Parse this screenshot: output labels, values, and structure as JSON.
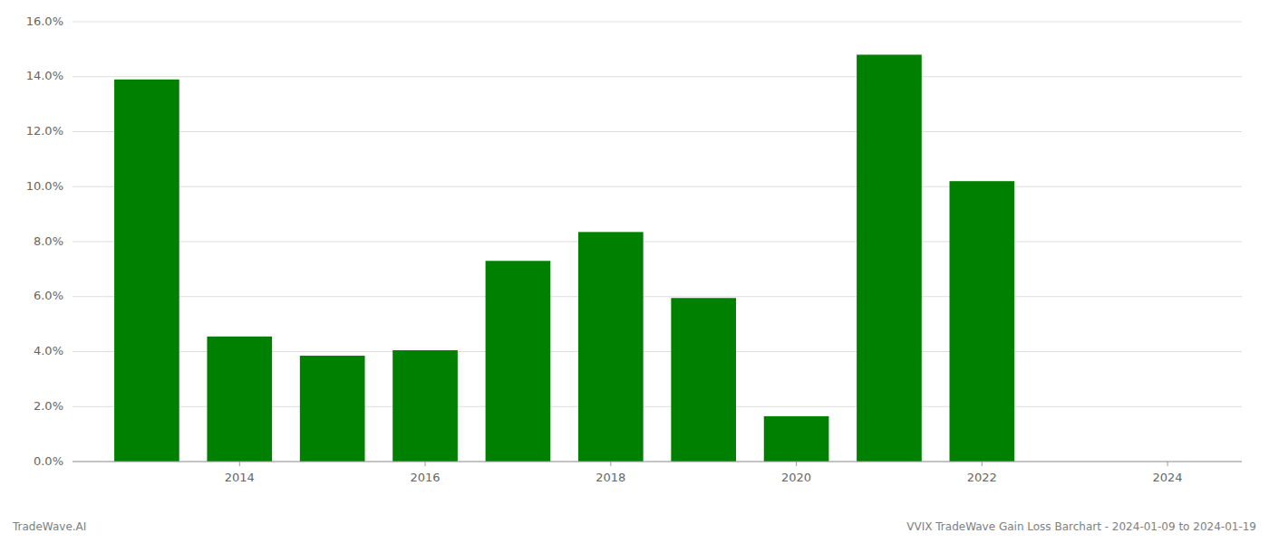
{
  "chart_data": {
    "type": "bar",
    "x": [
      2013,
      2014,
      2015,
      2016,
      2017,
      2018,
      2019,
      2020,
      2021,
      2022
    ],
    "values": [
      0.139,
      0.0455,
      0.0385,
      0.0405,
      0.073,
      0.0835,
      0.0595,
      0.0165,
      0.148,
      0.102
    ],
    "color": "#008000",
    "xlim": [
      2012.2,
      2024.8
    ],
    "xticks": [
      2014,
      2016,
      2018,
      2020,
      2022,
      2024
    ],
    "ylim": [
      0,
      0.16
    ],
    "yticks": [
      {
        "value": 0.0,
        "label": "0.0%"
      },
      {
        "value": 0.02,
        "label": "2.0%"
      },
      {
        "value": 0.04,
        "label": "4.0%"
      },
      {
        "value": 0.06,
        "label": "6.0%"
      },
      {
        "value": 0.08,
        "label": "8.0%"
      },
      {
        "value": 0.1,
        "label": "10.0%"
      },
      {
        "value": 0.12,
        "label": "12.0%"
      },
      {
        "value": 0.14,
        "label": "14.0%"
      },
      {
        "value": 0.16,
        "label": "16.0%"
      }
    ],
    "grid": true,
    "annotations": [
      "TradeWave.AI",
      "VVIX TradeWave Gain Loss Barchart - 2024-01-09 to 2024-01-19"
    ]
  }
}
